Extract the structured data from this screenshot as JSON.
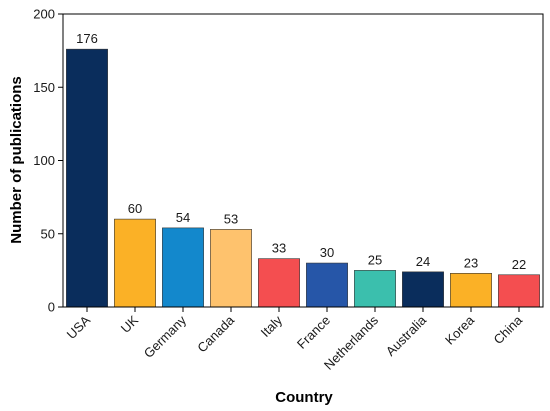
{
  "chart_data": {
    "type": "bar",
    "title": "",
    "xlabel": "Country",
    "ylabel": "Number of publications",
    "ylim": [
      0,
      200
    ],
    "yticks": [
      0,
      50,
      100,
      150,
      200
    ],
    "grid": false,
    "categories": [
      "USA",
      "UK",
      "Germany",
      "Canada",
      "Italy",
      "France",
      "Netherlands",
      "Australia",
      "Korea",
      "China"
    ],
    "values": [
      176,
      60,
      54,
      53,
      33,
      30,
      25,
      24,
      23,
      22
    ],
    "colors": [
      "#0a2d5c",
      "#fbb126",
      "#1388cc",
      "#fec26d",
      "#f44e50",
      "#2656a8",
      "#3bbfad",
      "#0a2d5c",
      "#fbb126",
      "#f44e50"
    ]
  }
}
